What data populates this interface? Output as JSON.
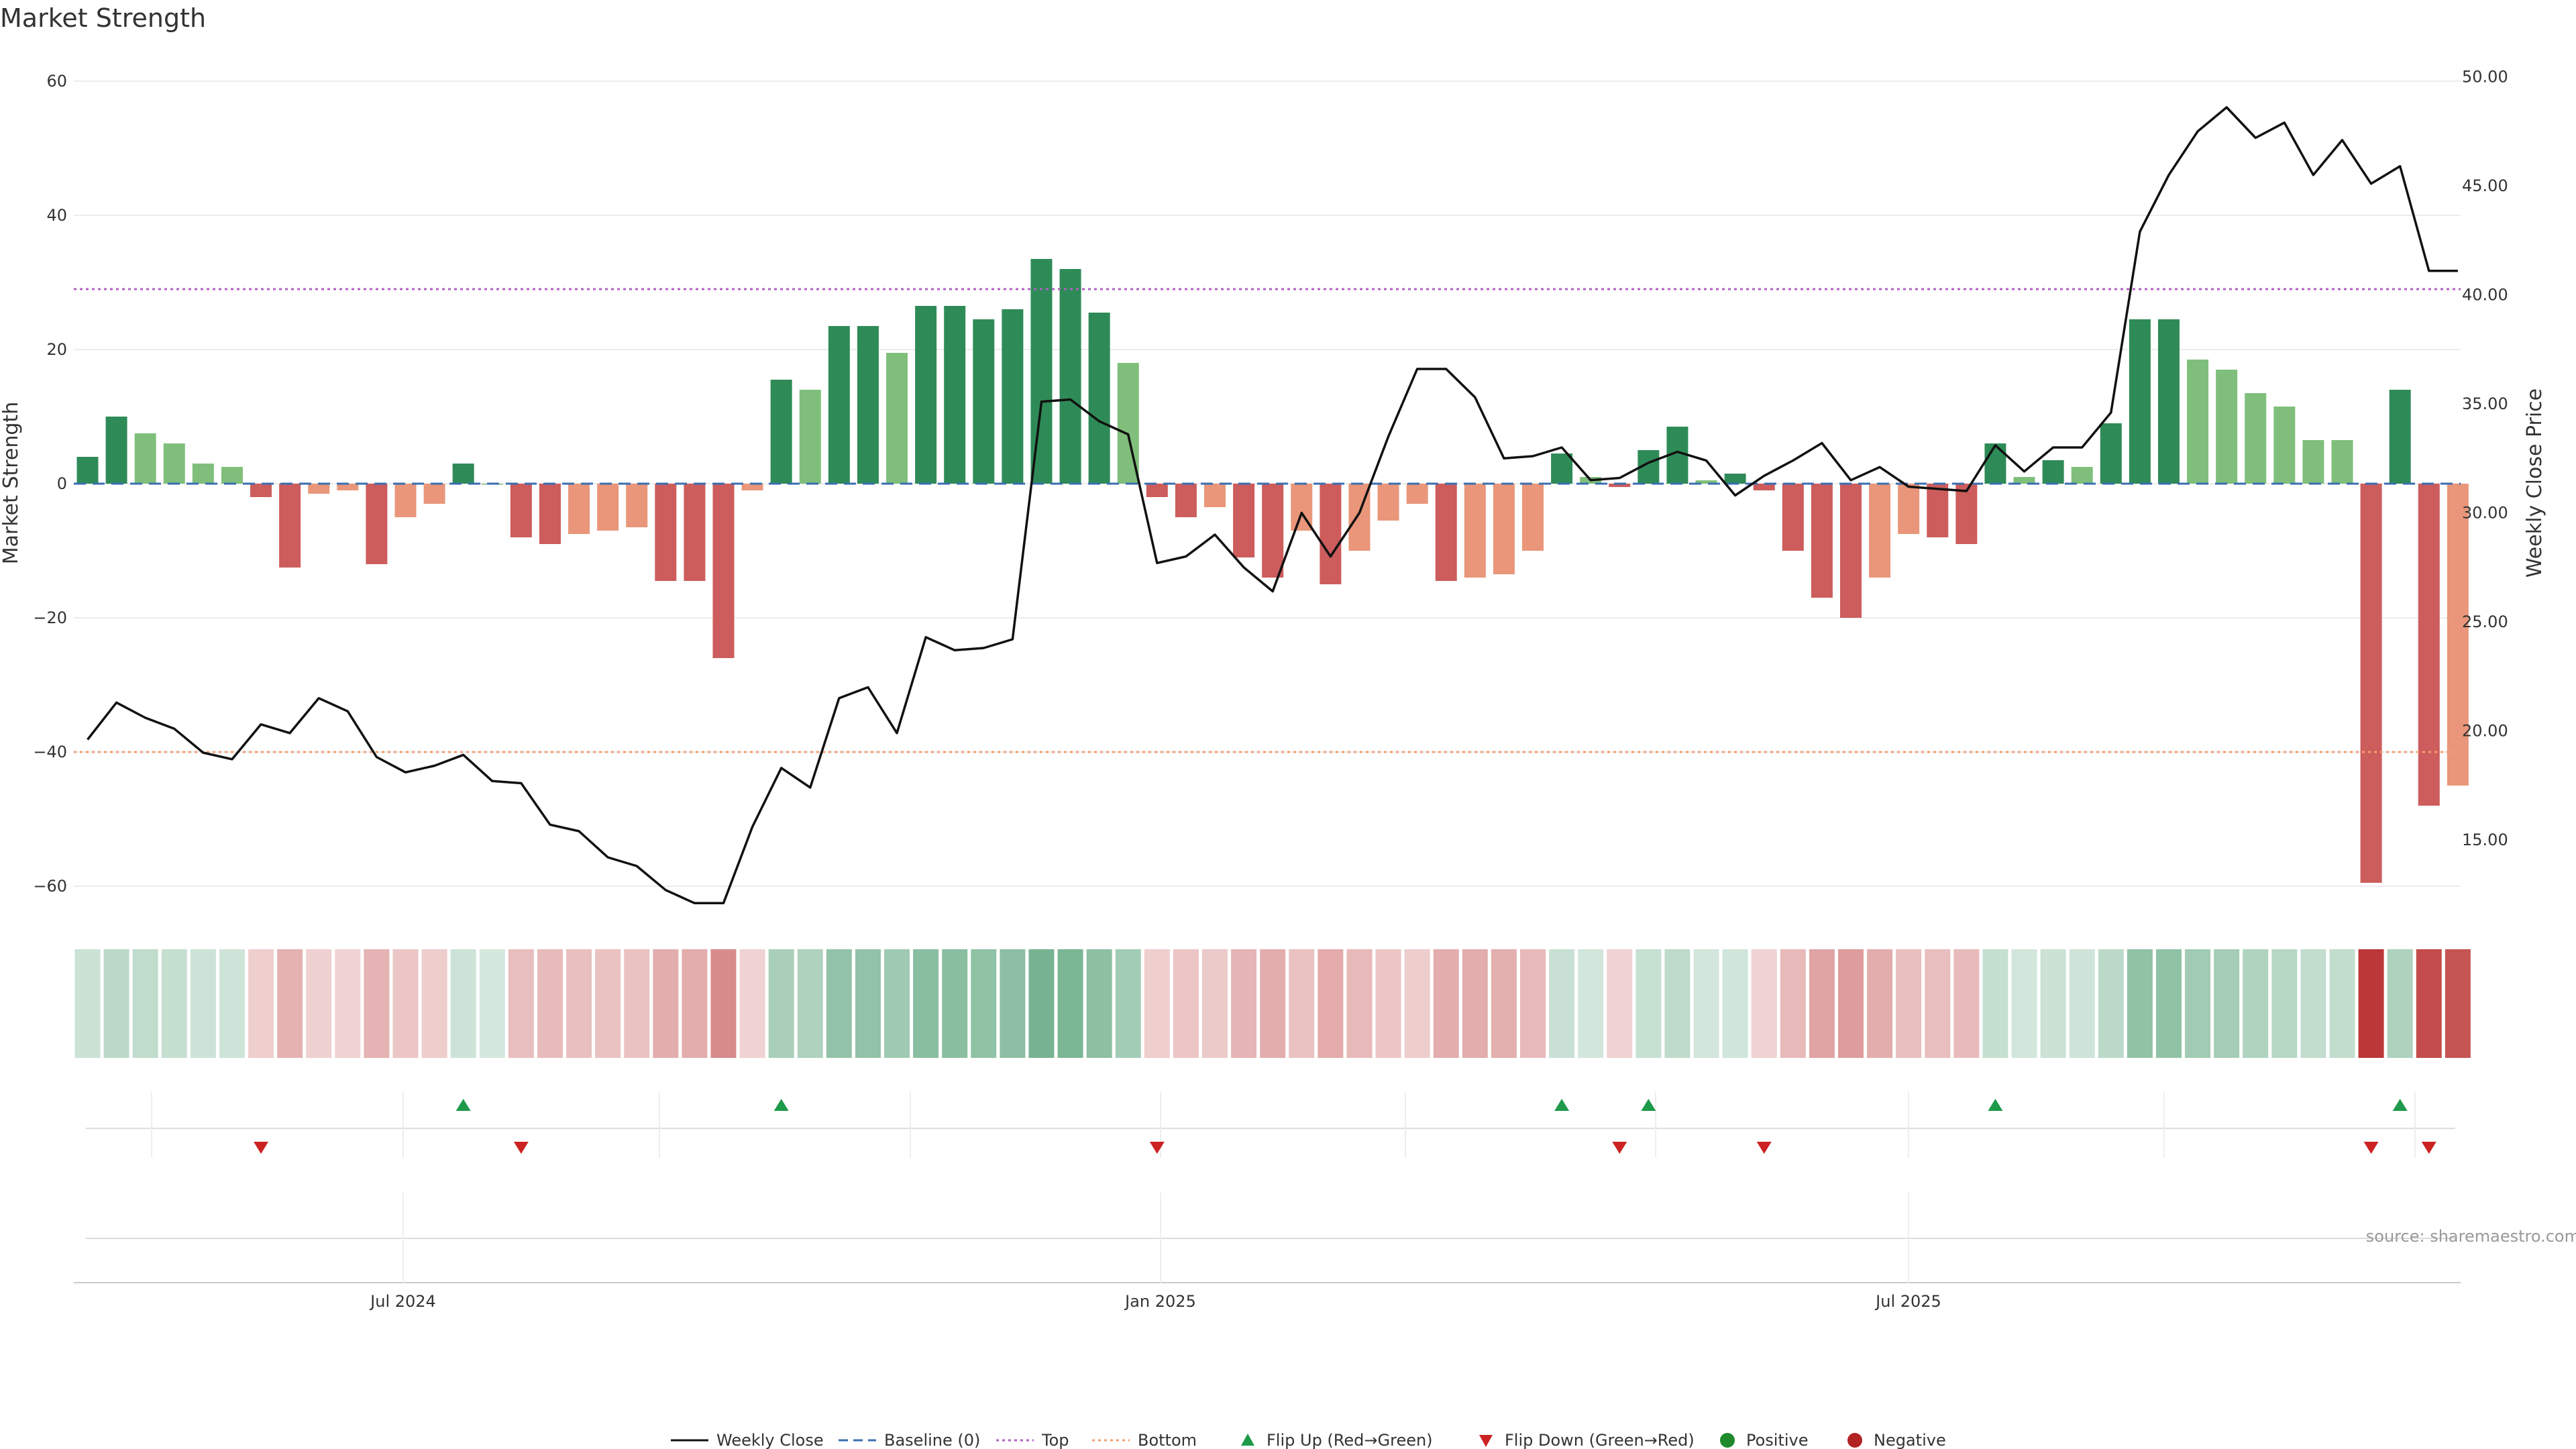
{
  "chart_data": {
    "type": "bar",
    "title": "Market Strength",
    "ylabel": "Market Strength",
    "y2label": "Weekly Close Price",
    "ylim": [
      -64,
      62
    ],
    "y2lim": [
      12.0,
      51.0
    ],
    "yticks": [
      "60",
      "40",
      "20",
      "0",
      "−20",
      "−40",
      "−60"
    ],
    "y2ticks": [
      "50.00",
      "45.00",
      "40.00",
      "35.00",
      "30.00",
      "25.00",
      "20.00",
      "15.00"
    ],
    "xticks": [
      "Jul 2024",
      "Jan 2025",
      "Jul 2025"
    ],
    "top_line": 29,
    "bottom_line": -40,
    "baseline": 0,
    "strength": [
      4,
      10,
      7.5,
      6,
      3,
      2.5,
      -2,
      -12.5,
      -1.5,
      -1,
      -12,
      -5,
      -3,
      3,
      0,
      -8,
      -9,
      -7.5,
      -7,
      -6.5,
      -14.5,
      -14.5,
      -26,
      -1,
      15.5,
      14,
      23.5,
      23.5,
      19.5,
      26.5,
      26.5,
      24.5,
      26,
      33.5,
      32,
      25.5,
      18,
      -2,
      -5,
      -3.5,
      -11,
      -14,
      -7,
      -15,
      -10,
      -5.5,
      -3,
      -14.5,
      -14,
      -13.5,
      -10,
      4.5,
      1,
      -0.5,
      5,
      8.5,
      0.5,
      1.5,
      -1,
      -10,
      -17,
      -20,
      -14,
      -7.5,
      -8,
      -9,
      6,
      1,
      3.5,
      2.5,
      9,
      24.5,
      24.5,
      18.5,
      17,
      13.5,
      11.5,
      6.5,
      6.5,
      -59.5,
      14,
      -48,
      -45
    ],
    "weekly_close": [
      19.6,
      21.3,
      20.6,
      20.1,
      19.0,
      18.7,
      20.3,
      19.9,
      21.5,
      20.9,
      18.8,
      18.1,
      18.4,
      18.9,
      17.7,
      17.6,
      15.7,
      15.4,
      14.2,
      13.8,
      12.7,
      12.1,
      12.1,
      15.6,
      18.3,
      17.4,
      21.5,
      22.0,
      19.9,
      24.3,
      23.7,
      23.8,
      24.2,
      35.1,
      35.2,
      34.2,
      33.6,
      27.7,
      28.0,
      29.0,
      27.5,
      26.4,
      30.0,
      28.0,
      30.0,
      33.5,
      36.6,
      36.6,
      35.3,
      32.5,
      32.6,
      33.0,
      31.5,
      31.6,
      32.3,
      32.8,
      32.4,
      30.8,
      31.7,
      32.4,
      33.2,
      31.5,
      32.1,
      31.2,
      31.1,
      31.0,
      33.1,
      31.9,
      33.0,
      33.0,
      34.6,
      42.9,
      45.5,
      47.5,
      48.6,
      47.2,
      47.9,
      45.5,
      47.1,
      45.1,
      45.9,
      41.1,
      41.1
    ],
    "flip_up_indices": [
      13,
      24,
      51,
      54,
      66,
      80
    ],
    "flip_down_indices": [
      6,
      15,
      37,
      53,
      58,
      79,
      81
    ],
    "legend": [
      {
        "label": "Weekly Close",
        "kind": "line-solid",
        "color": "#111111"
      },
      {
        "label": "Baseline (0)",
        "kind": "line-dashed",
        "color": "#3a6fb0"
      },
      {
        "label": "Top",
        "kind": "line-dotted",
        "color": "#b060c0"
      },
      {
        "label": "Bottom",
        "kind": "line-dotted",
        "color": "#f0a070"
      },
      {
        "label": "Flip Up (Red→Green)",
        "kind": "triangle-up",
        "color": "#1e9a4a"
      },
      {
        "label": "Flip Down (Green→Red)",
        "kind": "triangle-down",
        "color": "#cc2222"
      },
      {
        "label": "Positive",
        "kind": "dot",
        "color": "#1e8a2a"
      },
      {
        "label": "Negative",
        "kind": "dot",
        "color": "#b22222"
      }
    ],
    "source": "source: sharemaestro.com"
  },
  "colors": {
    "pos_strong": "#2e8b57",
    "pos_weak": "#7fbf7b",
    "neg_strong": "#cd5c5c",
    "neg_weak": "#e9967a",
    "close_line": "#111111",
    "baseline": "#3a6fb0",
    "top_line": "#b060c0",
    "bottom_line": "#f0a070",
    "flip_up": "#1e9a4a",
    "flip_down": "#cc2222"
  }
}
